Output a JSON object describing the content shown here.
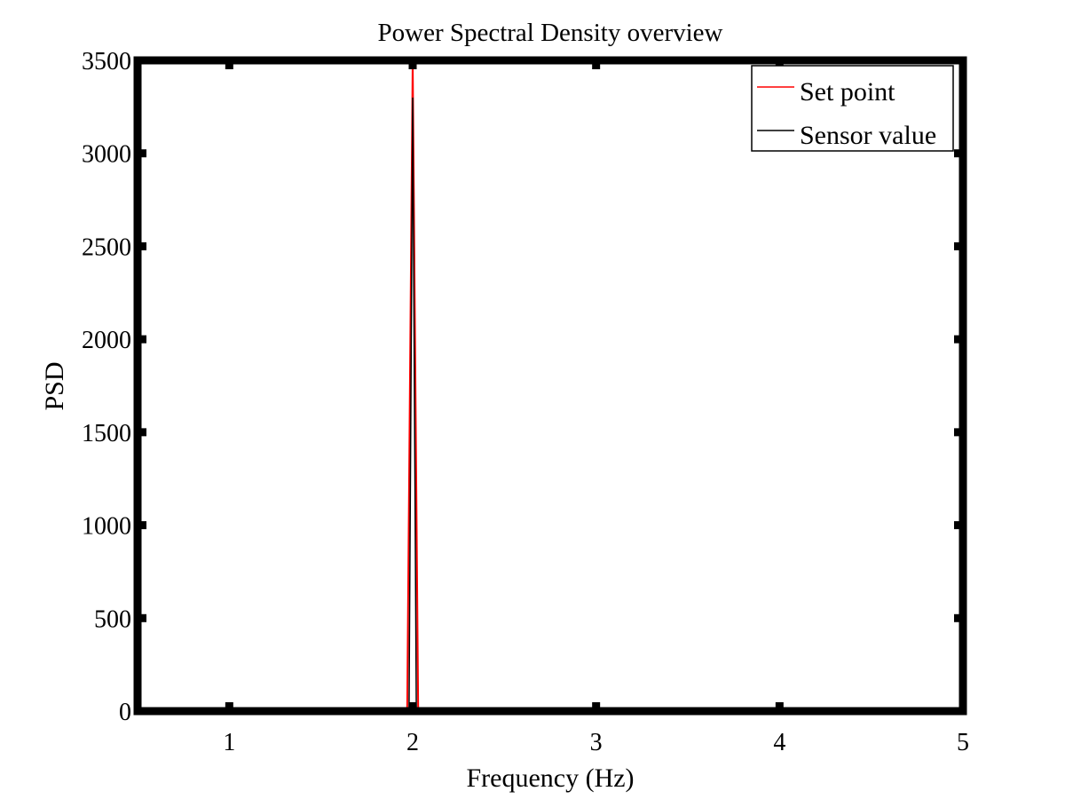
{
  "chart_data": {
    "type": "line",
    "title": "Power Spectral Density overview",
    "xlabel": "Frequency (Hz)",
    "ylabel": "PSD",
    "xlim": [
      0.5,
      5
    ],
    "ylim": [
      0,
      3500
    ],
    "xticks": [
      1,
      2,
      3,
      4,
      5
    ],
    "yticks": [
      0,
      500,
      1000,
      1500,
      2000,
      2500,
      3000,
      3500
    ],
    "grid": false,
    "legend_position": "top-right",
    "series": [
      {
        "name": "Set point",
        "color": "#ff0000",
        "x": [
          0.5,
          1.97,
          2.0,
          2.03,
          5.0
        ],
        "y": [
          0,
          0,
          3500,
          0,
          0
        ]
      },
      {
        "name": "Sensor value",
        "color": "#000000",
        "x": [
          0.5,
          1.95,
          1.98,
          2.0,
          2.02,
          2.05,
          5.0
        ],
        "y": [
          0,
          0,
          10,
          3300,
          10,
          0,
          0
        ]
      }
    ]
  }
}
